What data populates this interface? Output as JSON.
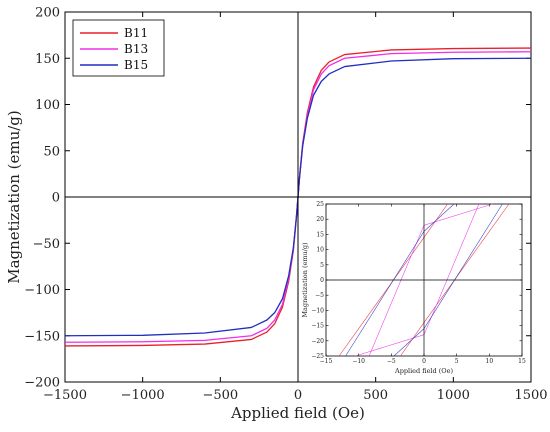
{
  "chart_data": [
    {
      "type": "line",
      "title": "",
      "xlabel": "Applied field (Oe)",
      "ylabel": "Magnetization (emu/g)",
      "xlim": [
        -1500,
        1500
      ],
      "ylim": [
        -200,
        200
      ],
      "xticks": [
        -1500,
        -1000,
        -500,
        0,
        500,
        1000,
        1500
      ],
      "yticks": [
        -200,
        -150,
        -100,
        -50,
        0,
        50,
        100,
        150,
        200
      ],
      "xtick_labels": [
        "−1500",
        "−1000",
        "−500",
        "0",
        "500",
        "1000",
        "1500"
      ],
      "ytick_labels": [
        "−200",
        "−150",
        "−100",
        "−50",
        "0",
        "50",
        "100",
        "150",
        "200"
      ],
      "legend_position": "top-left",
      "series": [
        {
          "name": "B11",
          "color": "#e8212a",
          "saturation_emu_g": 161,
          "points": [
            [
              -1500,
              -161
            ],
            [
              -1000,
              -160.5
            ],
            [
              -600,
              -159
            ],
            [
              -300,
              -154
            ],
            [
              -200,
              -146
            ],
            [
              -150,
              -137
            ],
            [
              -100,
              -119
            ],
            [
              -60,
              -91
            ],
            [
              -30,
              -58
            ],
            [
              -10,
              -22
            ],
            [
              0,
              0
            ],
            [
              10,
              22
            ],
            [
              30,
              58
            ],
            [
              60,
              91
            ],
            [
              100,
              119
            ],
            [
              150,
              137
            ],
            [
              200,
              146
            ],
            [
              300,
              154
            ],
            [
              600,
              159
            ],
            [
              1000,
              160.5
            ],
            [
              1500,
              161
            ]
          ]
        },
        {
          "name": "B13",
          "color": "#f02ee8",
          "saturation_emu_g": 157,
          "points": [
            [
              -1500,
              -157
            ],
            [
              -1000,
              -156.5
            ],
            [
              -600,
              -155
            ],
            [
              -300,
              -150
            ],
            [
              -200,
              -142
            ],
            [
              -150,
              -133
            ],
            [
              -100,
              -116
            ],
            [
              -60,
              -88
            ],
            [
              -30,
              -56
            ],
            [
              -10,
              -21
            ],
            [
              0,
              0
            ],
            [
              10,
              21
            ],
            [
              30,
              56
            ],
            [
              60,
              88
            ],
            [
              100,
              116
            ],
            [
              150,
              133
            ],
            [
              200,
              142
            ],
            [
              300,
              150
            ],
            [
              600,
              155
            ],
            [
              1000,
              156.5
            ],
            [
              1500,
              157
            ]
          ]
        },
        {
          "name": "B15",
          "color": "#1f2fc0",
          "saturation_emu_g": 150,
          "points": [
            [
              -1500,
              -150
            ],
            [
              -1000,
              -149.5
            ],
            [
              -600,
              -147
            ],
            [
              -300,
              -141
            ],
            [
              -200,
              -133
            ],
            [
              -150,
              -125
            ],
            [
              -100,
              -110
            ],
            [
              -60,
              -85
            ],
            [
              -30,
              -55
            ],
            [
              -10,
              -21
            ],
            [
              0,
              0
            ],
            [
              10,
              21
            ],
            [
              30,
              55
            ],
            [
              60,
              85
            ],
            [
              100,
              110
            ],
            [
              150,
              125
            ],
            [
              200,
              133
            ],
            [
              300,
              141
            ],
            [
              600,
              147
            ],
            [
              1000,
              149.5
            ],
            [
              1500,
              150
            ]
          ]
        }
      ]
    },
    {
      "type": "line",
      "title": "",
      "xlabel": "Applied field (Oe)",
      "ylabel": "Magnetization (emu/g)",
      "xlim": [
        -15,
        15
      ],
      "ylim": [
        -25,
        25
      ],
      "xticks": [
        -15,
        -10,
        -5,
        0,
        5,
        10,
        15
      ],
      "yticks": [
        -25,
        -20,
        -15,
        -10,
        -5,
        0,
        5,
        10,
        15,
        20,
        25
      ],
      "xtick_labels": [
        "−15",
        "−10",
        "−5",
        "0",
        "5",
        "10",
        "15"
      ],
      "ytick_labels": [
        "−25",
        "−20",
        "−15",
        "−10",
        "−5",
        "0",
        "5",
        "10",
        "15",
        "20",
        "25"
      ],
      "series": [
        {
          "name": "B11",
          "color": "#e8212a",
          "upper_branch": [
            [
              -13,
              -25
            ],
            [
              0,
              14
            ],
            [
              3.6,
              25
            ]
          ],
          "lower_branch": [
            [
              -3.6,
              -25
            ],
            [
              0,
              -14
            ],
            [
              13,
              25
            ]
          ]
        },
        {
          "name": "B13",
          "color": "#f02ee8",
          "upper_branch": [
            [
              -8.4,
              -25
            ],
            [
              0,
              18
            ],
            [
              10.5,
              25
            ]
          ],
          "lower_branch": [
            [
              -10.5,
              -25
            ],
            [
              0,
              -18
            ],
            [
              8.4,
              25
            ]
          ]
        },
        {
          "name": "B15",
          "color": "#1f2fc0",
          "upper_branch": [
            [
              -12,
              -25
            ],
            [
              0,
              16
            ],
            [
              4.6,
              25
            ]
          ],
          "lower_branch": [
            [
              -4.6,
              -25
            ],
            [
              0,
              -16
            ],
            [
              12,
              25
            ]
          ]
        }
      ]
    }
  ]
}
